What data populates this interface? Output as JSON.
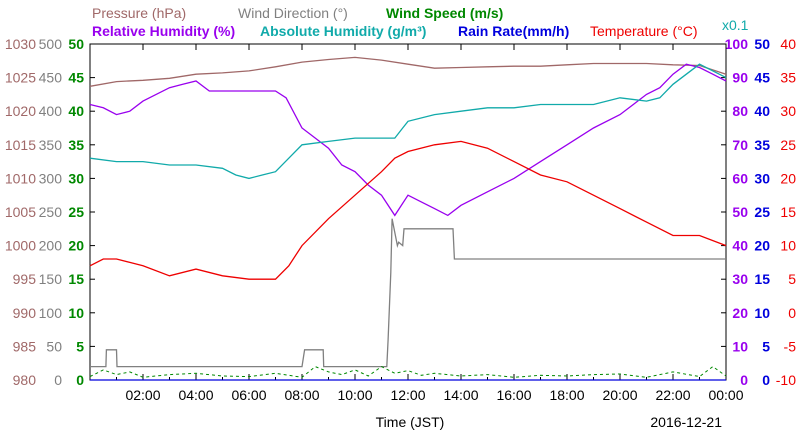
{
  "chart_data": {
    "type": "line",
    "date": "2016-12-21",
    "xlabel": "Time (JST)",
    "xlim": [
      "00:00",
      "24:00"
    ],
    "xticks": [
      "02:00",
      "04:00",
      "06:00",
      "08:00",
      "10:00",
      "12:00",
      "14:00",
      "16:00",
      "18:00",
      "20:00",
      "22:00",
      "00:00"
    ],
    "legend": [
      {
        "text": "Pressure (hPa)",
        "color": "#a06868"
      },
      {
        "text": "Wind Direction (°)",
        "color": "#808080"
      },
      {
        "text": "Wind Speed (m/s)",
        "color": "#008800"
      },
      {
        "text": "Relative Humidity (%)",
        "color": "#9900ee"
      },
      {
        "text": "Absolute Humidity (g/m³)",
        "color": "#11aaaa"
      },
      {
        "text": "Rain Rate(mm/h)",
        "color": "#0000dd"
      },
      {
        "text": "Temperature (°C)",
        "color": "#ee0000"
      },
      {
        "text": "x0.1",
        "color": "#11aaaa"
      }
    ],
    "axes": [
      {
        "name": "pressure",
        "color": "#a06868",
        "ylim": [
          980,
          1030
        ],
        "ticks": [
          "980",
          "985",
          "990",
          "995",
          "1000",
          "1005",
          "1010",
          "1015",
          "1020",
          "1025",
          "1030"
        ]
      },
      {
        "name": "wind_direction",
        "color": "#808080",
        "ylim": [
          0,
          500
        ],
        "ticks": [
          "0",
          "50",
          "100",
          "150",
          "200",
          "250",
          "300",
          "350",
          "400",
          "450",
          "500"
        ]
      },
      {
        "name": "wind_speed",
        "color": "#008800",
        "ylim": [
          0,
          50
        ],
        "ticks": [
          "0",
          "5",
          "10",
          "15",
          "20",
          "25",
          "30",
          "35",
          "40",
          "45",
          "50"
        ]
      },
      {
        "name": "relative_humidity",
        "color": "#9900ee",
        "ylim": [
          0,
          100
        ],
        "ticks": [
          "0",
          "10",
          "20",
          "30",
          "40",
          "50",
          "60",
          "70",
          "80",
          "90",
          "100"
        ]
      },
      {
        "name": "rain_rate",
        "color": "#0000dd",
        "ylim": [
          0,
          50
        ],
        "ticks": [
          "0",
          "5",
          "10",
          "15",
          "20",
          "25",
          "30",
          "35",
          "40",
          "45",
          "50"
        ]
      },
      {
        "name": "temperature",
        "color": "#ee0000",
        "ylim": [
          -10,
          40
        ],
        "ticks": [
          "-10",
          "-5",
          "0",
          "5",
          "10",
          "15",
          "20",
          "25",
          "30",
          "35",
          "40"
        ]
      }
    ],
    "series": [
      {
        "name": "Pressure (hPa)",
        "axis": "pressure",
        "color": "#a06868",
        "x": [
          0,
          1,
          2,
          3,
          4,
          5,
          6,
          7,
          8,
          9,
          10,
          11,
          12,
          13,
          14,
          15,
          16,
          17,
          18,
          19,
          20,
          21,
          22,
          23,
          24
        ],
        "y": [
          1023.7,
          1024.4,
          1024.6,
          1024.9,
          1025.5,
          1025.7,
          1026.0,
          1026.6,
          1027.3,
          1027.7,
          1028.0,
          1027.6,
          1027.0,
          1026.4,
          1026.5,
          1026.6,
          1026.7,
          1026.7,
          1026.9,
          1027.1,
          1027.1,
          1027.1,
          1026.9,
          1026.8,
          1025.5
        ]
      },
      {
        "name": "Wind Direction (°)",
        "axis": "wind_direction",
        "color": "#808080",
        "x": [
          0,
          0.6,
          0.62,
          1.0,
          1.02,
          8.0,
          8.1,
          8.8,
          8.82,
          11.2,
          11.25,
          11.35,
          11.4,
          11.6,
          11.65,
          11.8,
          11.85,
          13.7,
          13.75,
          24
        ],
        "y": [
          20,
          20,
          45,
          45,
          20,
          20,
          45,
          45,
          20,
          20,
          60,
          160,
          240,
          200,
          205,
          200,
          225,
          225,
          180,
          180
        ]
      },
      {
        "name": "Wind Speed (m/s)",
        "axis": "wind_speed",
        "color": "#008800",
        "x": [
          0,
          0.5,
          1,
          1.5,
          2,
          3,
          4,
          5,
          6,
          7,
          8,
          8.5,
          9,
          9.5,
          10,
          10.5,
          11,
          11.5,
          12,
          12.5,
          13,
          14,
          15,
          16,
          17,
          18,
          19,
          20,
          21,
          22,
          23,
          23.5,
          24
        ],
        "y": [
          0.5,
          1.5,
          0.8,
          1.2,
          0.4,
          0.8,
          1.0,
          0.6,
          0.5,
          1.0,
          0.4,
          2.0,
          1.2,
          0.8,
          1.5,
          0.6,
          2.0,
          1.0,
          1.4,
          0.7,
          1.0,
          0.6,
          0.8,
          0.4,
          0.7,
          0.6,
          0.8,
          0.9,
          0.4,
          1.2,
          0.5,
          2.0,
          0.6
        ]
      },
      {
        "name": "Relative Humidity (%)",
        "axis": "relative_humidity",
        "color": "#9900ee",
        "x": [
          0,
          0.5,
          1,
          1.5,
          2,
          3,
          3.5,
          4,
          4.5,
          5,
          6,
          7,
          7.4,
          8,
          8.5,
          9,
          9.5,
          10,
          10.5,
          11,
          11.5,
          12,
          12.5,
          13,
          13.5,
          14,
          15,
          16,
          17,
          18,
          19,
          20,
          21,
          21.5,
          22,
          22.5,
          23,
          23.5,
          24
        ],
        "y": [
          82,
          81,
          79,
          80,
          83,
          87,
          88,
          89,
          86,
          86,
          86,
          86,
          84,
          75,
          72,
          69,
          64,
          62,
          58,
          55,
          49,
          55,
          53,
          51,
          49,
          52,
          56,
          60,
          65,
          70,
          75,
          79,
          85,
          87,
          91,
          94,
          93,
          91,
          89
        ]
      },
      {
        "name": "Absolute Humidity (g/m³)",
        "axis": "rain_rate",
        "color": "#11aaaa",
        "x": [
          0,
          1,
          2,
          3,
          4,
          5,
          5.5,
          6,
          6.5,
          7,
          7.5,
          8,
          9,
          10,
          11,
          11.5,
          11.8,
          12,
          13,
          14,
          15,
          16,
          17,
          18,
          19,
          20,
          21,
          21.5,
          22,
          23,
          24
        ],
        "y": [
          33,
          32.5,
          32.5,
          32,
          32,
          31.5,
          30.5,
          30,
          30.5,
          31,
          33,
          35,
          35.5,
          36,
          36,
          36,
          37.5,
          38.5,
          39.5,
          40,
          40.5,
          40.5,
          41,
          41,
          41,
          42,
          41.5,
          42,
          44,
          47,
          45
        ]
      },
      {
        "name": "Rain Rate(mm/h)",
        "axis": "rain_rate",
        "color": "#0000dd",
        "x": [
          0,
          24
        ],
        "y": [
          0,
          0
        ]
      },
      {
        "name": "Temperature (°C)",
        "axis": "temperature",
        "color": "#ee0000",
        "x": [
          0,
          0.5,
          1,
          1.5,
          2,
          3,
          4,
          5,
          6,
          7,
          7.5,
          8,
          9,
          10,
          11,
          11.5,
          12,
          13,
          14,
          15,
          16,
          17,
          18,
          19,
          20,
          21,
          22,
          23,
          24
        ],
        "y": [
          7,
          8,
          8,
          7.5,
          7,
          5.5,
          6.5,
          5.5,
          5,
          5,
          7,
          10,
          14,
          17.5,
          21,
          23,
          24,
          25,
          25.5,
          24.5,
          22.5,
          20.5,
          19.5,
          17.5,
          15.5,
          13.5,
          11.5,
          11.5,
          10
        ]
      }
    ]
  }
}
